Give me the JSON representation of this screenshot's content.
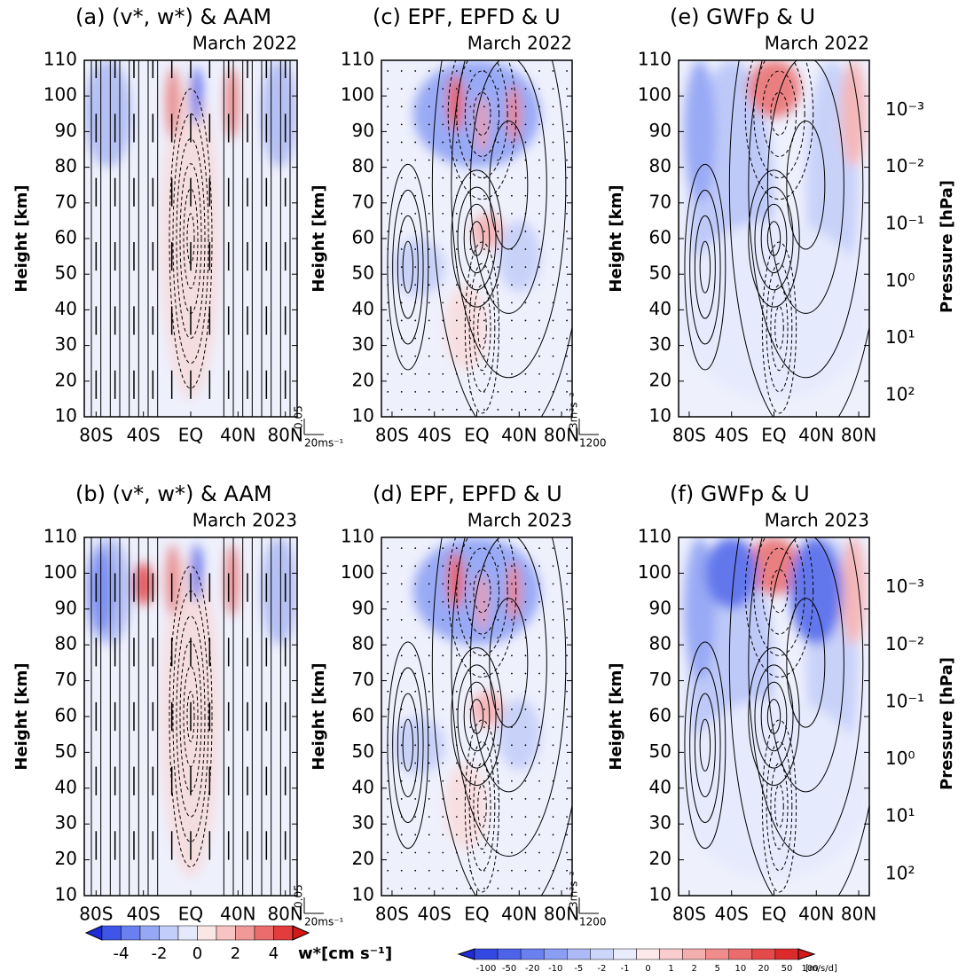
{
  "chart_data": [
    {
      "type": "contour",
      "title": "(a) (v*, w*) & AAM",
      "subtitle": "March 2022",
      "ylabel": "Height [km]",
      "xlim": [
        -90,
        90
      ],
      "xticks": [
        {
          "value": -80,
          "label": "80S"
        },
        {
          "value": -40,
          "label": "40S"
        },
        {
          "value": 0,
          "label": "EQ"
        },
        {
          "value": 40,
          "label": "40N"
        },
        {
          "value": 80,
          "label": "80N"
        }
      ],
      "ylim": [
        10,
        110
      ],
      "yticks": [
        10,
        20,
        30,
        40,
        50,
        60,
        70,
        80,
        90,
        100,
        110
      ],
      "vector_scale": {
        "vertical": "0.05",
        "horizontal": "20ms⁻¹"
      }
    },
    {
      "type": "contour",
      "title": "(b) (v*, w*) & AAM",
      "subtitle": "March 2023",
      "ylabel": "Height [km]",
      "xlim": [
        -90,
        90
      ],
      "xticks": [
        {
          "value": -80,
          "label": "80S"
        },
        {
          "value": -40,
          "label": "40S"
        },
        {
          "value": 0,
          "label": "EQ"
        },
        {
          "value": 40,
          "label": "40N"
        },
        {
          "value": 80,
          "label": "80N"
        }
      ],
      "ylim": [
        10,
        110
      ],
      "yticks": [
        10,
        20,
        30,
        40,
        50,
        60,
        70,
        80,
        90,
        100,
        110
      ],
      "vector_scale": {
        "vertical": "0.05",
        "horizontal": "20ms⁻¹"
      }
    },
    {
      "type": "contour",
      "title": "(c) EPF, EPFD & U",
      "subtitle": "March 2022",
      "ylabel": "Height [km]",
      "xlim": [
        -90,
        90
      ],
      "xticks": [
        {
          "value": -80,
          "label": "80S"
        },
        {
          "value": -40,
          "label": "40S"
        },
        {
          "value": 0,
          "label": "EQ"
        },
        {
          "value": 40,
          "label": "40N"
        },
        {
          "value": 80,
          "label": "80N"
        }
      ],
      "ylim": [
        10,
        110
      ],
      "yticks": [
        10,
        20,
        30,
        40,
        50,
        60,
        70,
        80,
        90,
        100,
        110
      ],
      "vector_scale": {
        "vertical": "3m²s⁻²",
        "horizontal": "1200"
      }
    },
    {
      "type": "contour",
      "title": "(d) EPF, EPFD & U",
      "subtitle": "March 2023",
      "ylabel": "Height [km]",
      "xlim": [
        -90,
        90
      ],
      "xticks": [
        {
          "value": -80,
          "label": "80S"
        },
        {
          "value": -40,
          "label": "40S"
        },
        {
          "value": 0,
          "label": "EQ"
        },
        {
          "value": 40,
          "label": "40N"
        },
        {
          "value": 80,
          "label": "80N"
        }
      ],
      "ylim": [
        10,
        110
      ],
      "yticks": [
        10,
        20,
        30,
        40,
        50,
        60,
        70,
        80,
        90,
        100,
        110
      ],
      "vector_scale": {
        "vertical": "3m²s⁻²",
        "horizontal": "1200"
      }
    },
    {
      "type": "contour",
      "title": "(e) GWFp & U",
      "subtitle": "March 2022",
      "ylabel": "Height [km]",
      "y2label": "Pressure [hPa]",
      "xlim": [
        -90,
        90
      ],
      "xticks": [
        {
          "value": -80,
          "label": "80S"
        },
        {
          "value": -40,
          "label": "40S"
        },
        {
          "value": 0,
          "label": "EQ"
        },
        {
          "value": 40,
          "label": "40N"
        },
        {
          "value": 80,
          "label": "80N"
        }
      ],
      "ylim": [
        10,
        110
      ],
      "yticks": [
        10,
        20,
        30,
        40,
        50,
        60,
        70,
        80,
        90,
        100,
        110
      ],
      "y2scale": "log",
      "y2lim": [
        237,
        0.000133
      ],
      "y2ticks": [
        {
          "value": 0.001,
          "label": "10⁻³"
        },
        {
          "value": 0.01,
          "label": "10⁻²"
        },
        {
          "value": 0.1,
          "label": "10⁻¹"
        },
        {
          "value": 1,
          "label": "10⁰"
        },
        {
          "value": 10,
          "label": "10¹"
        },
        {
          "value": 100,
          "label": "10²"
        }
      ]
    },
    {
      "type": "contour",
      "title": "(f) GWFp & U",
      "subtitle": "March 2023",
      "ylabel": "Height [km]",
      "y2label": "Pressure [hPa]",
      "xlim": [
        -90,
        90
      ],
      "xticks": [
        {
          "value": -80,
          "label": "80S"
        },
        {
          "value": -40,
          "label": "40S"
        },
        {
          "value": 0,
          "label": "EQ"
        },
        {
          "value": 40,
          "label": "40N"
        },
        {
          "value": 80,
          "label": "80N"
        }
      ],
      "ylim": [
        10,
        110
      ],
      "yticks": [
        10,
        20,
        30,
        40,
        50,
        60,
        70,
        80,
        90,
        100,
        110
      ],
      "y2scale": "log",
      "y2lim": [
        237,
        0.000133
      ],
      "y2ticks": [
        {
          "value": 0.001,
          "label": "10⁻³"
        },
        {
          "value": 0.01,
          "label": "10⁻²"
        },
        {
          "value": 0.1,
          "label": "10⁻¹"
        },
        {
          "value": 1,
          "label": "10⁰"
        },
        {
          "value": 10,
          "label": "10¹"
        },
        {
          "value": 100,
          "label": "10²"
        }
      ]
    }
  ],
  "colorbars": [
    {
      "label": "w*[cm s⁻¹]",
      "lim": [
        -5,
        5
      ],
      "ticks": [
        -4,
        -2,
        0,
        2,
        4
      ],
      "colors": [
        "#1e2bd6",
        "#3e55e8",
        "#6a80f0",
        "#96a8f5",
        "#c2cdf9",
        "#e4e9fc",
        "#fbe6e6",
        "#f7c3c3",
        "#f19999",
        "#ea6c6c",
        "#e23c3c",
        "#d51919"
      ]
    },
    {
      "label": "[m/s/d]",
      "ticks": [
        -100,
        -50,
        -20,
        -10,
        -5,
        -2,
        -1,
        0,
        1,
        2,
        5,
        10,
        20,
        50,
        100
      ],
      "colors": [
        "#1e2bd6",
        "#3348e2",
        "#4c63ea",
        "#6a80f0",
        "#8a9ef4",
        "#adbaf7",
        "#ccd5fa",
        "#e8ecfd",
        "#fde9e9",
        "#f9cdcd",
        "#f5aeae",
        "#f08c8c",
        "#ea6c6c",
        "#e44a4a",
        "#dc2b2b",
        "#d51919"
      ]
    }
  ]
}
